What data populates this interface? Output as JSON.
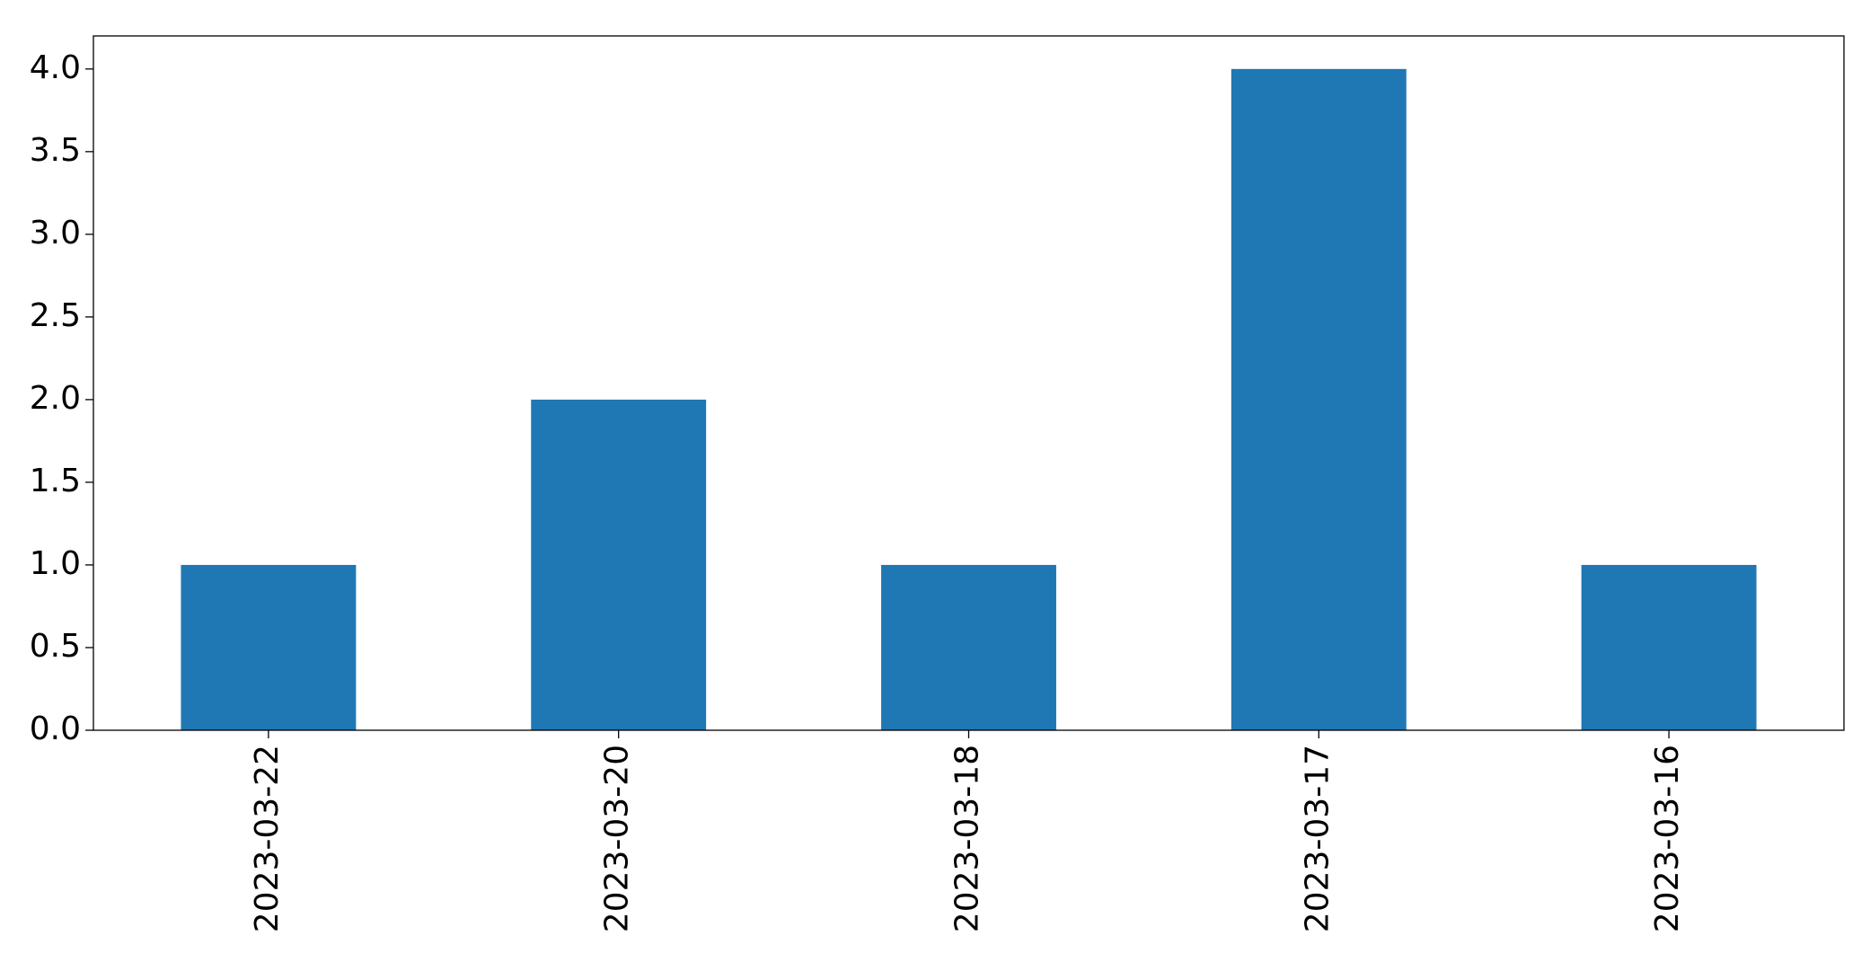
{
  "chart_data": {
    "type": "bar",
    "categories": [
      "2023-03-22",
      "2023-03-20",
      "2023-03-18",
      "2023-03-17",
      "2023-03-16"
    ],
    "values": [
      1,
      2,
      1,
      4,
      1
    ],
    "color": "#1f77b4",
    "ylim": [
      0,
      4.2
    ],
    "yticks": [
      {
        "value": 0,
        "label": "0.0"
      },
      0.5,
      {
        "value": 1,
        "label": "1.0"
      },
      1.5,
      {
        "value": 2,
        "label": "2.0"
      },
      2.5,
      {
        "value": 3,
        "label": "3.0"
      },
      3.5,
      {
        "value": 4,
        "label": "4.0"
      }
    ],
    "grid": false
  }
}
